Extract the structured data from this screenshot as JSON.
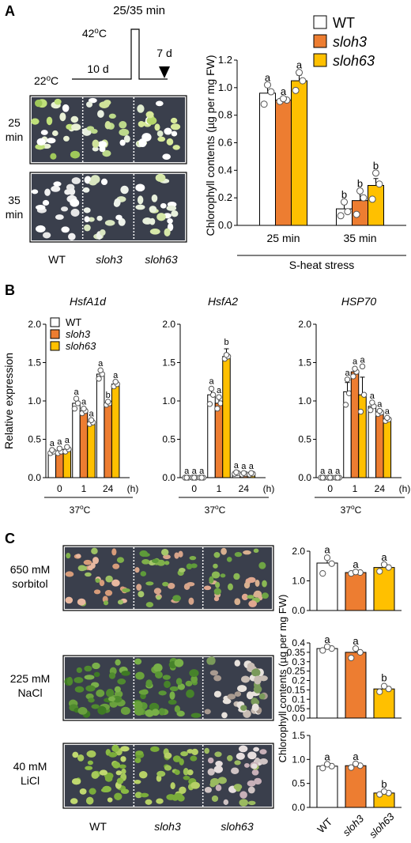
{
  "colors": {
    "WT": "#ffffff",
    "sloh3": "#ed7d31",
    "sloh63": "#ffc000",
    "axis": "#000000",
    "photo_bg": "#3a3f4c"
  },
  "panels": {
    "A": {
      "label": "A",
      "treatment": {
        "duration": "25/35 min",
        "high_temp": "42",
        "high_temp_unit": "oC",
        "base_temp": "22",
        "base_temp_unit": "oC",
        "growth": "10 d",
        "recovery": "7 d"
      },
      "photo_rows": [
        "25\nmin",
        "35\nmin"
      ],
      "photo_row_lines": [
        [
          "25",
          "min"
        ],
        [
          "35",
          "min"
        ]
      ],
      "genotypes": [
        "WT",
        "sloh3",
        "sloh63"
      ]
    },
    "B": {
      "label": "B"
    },
    "C": {
      "label": "C",
      "treatments": [
        [
          "650 mM",
          "sorbitol"
        ],
        [
          "225 mM",
          "NaCl"
        ],
        [
          "40 mM",
          "LiCl"
        ]
      ],
      "genotypes": [
        "WT",
        "sloh3",
        "sloh63"
      ]
    }
  },
  "chart_data": [
    {
      "id": "A-chlorophyll",
      "type": "bar",
      "ylabel": "Chlorophyll contents (µg per mg  FW)",
      "xlabel": "S-heat stress",
      "categories": [
        "25 min",
        "35 min"
      ],
      "ylim": [
        0,
        1.2
      ],
      "yticks": [
        "0.0",
        "0.2",
        "0.4",
        "0.6",
        "0.8",
        "1.0",
        "1.2"
      ],
      "legend": {
        "placement": "top-right",
        "entries": [
          "WT",
          "sloh3",
          "sloh63"
        ]
      },
      "series": [
        {
          "name": "WT",
          "values": [
            0.96,
            0.12
          ],
          "err": [
            0.05,
            0.04
          ],
          "points": [
            [
              0.88,
              0.97,
              1.02
            ],
            [
              0.07,
              0.1,
              0.17
            ]
          ],
          "letters": [
            "a",
            "b"
          ]
        },
        {
          "name": "sloh3",
          "values": [
            0.91,
            0.18
          ],
          "err": [
            0.01,
            0.06
          ],
          "points": [
            [
              0.9,
              0.91,
              0.92
            ],
            [
              0.08,
              0.2,
              0.25
            ]
          ],
          "letters": [
            "a",
            "b"
          ]
        },
        {
          "name": "sloh63",
          "values": [
            1.05,
            0.29
          ],
          "err": [
            0.04,
            0.05
          ],
          "points": [
            [
              0.98,
              1.05,
              1.11
            ],
            [
              0.19,
              0.3,
              0.38
            ]
          ],
          "letters": [
            "a",
            "b"
          ]
        }
      ]
    },
    {
      "id": "B-HsfA1d",
      "type": "bar",
      "title": "HsfA1d",
      "ylabel": "Relative expression",
      "xlabel": "37oC",
      "categories": [
        "0",
        "1",
        "24"
      ],
      "x_unit": "(h)",
      "ylim": [
        0,
        2.0
      ],
      "yticks": [
        "0.0",
        "0.5",
        "1.0",
        "1.5",
        "2.0"
      ],
      "legend": {
        "placement": "top-left",
        "entries": [
          "WT",
          "sloh3",
          "sloh63"
        ]
      },
      "series": [
        {
          "name": "WT",
          "values": [
            0.34,
            0.97,
            1.35
          ],
          "err": [
            0.02,
            0.06,
            0.05
          ],
          "points": [
            [
              0.32,
              0.34,
              0.36
            ],
            [
              0.9,
              0.97,
              1.03
            ],
            [
              1.29,
              1.35,
              1.4
            ]
          ],
          "letters": [
            "a",
            "a",
            "a"
          ]
        },
        {
          "name": "sloh3",
          "values": [
            0.34,
            0.87,
            0.97
          ],
          "err": [
            0.02,
            0.03,
            0.02
          ],
          "points": [
            [
              0.32,
              0.34,
              0.38
            ],
            [
              0.84,
              0.87,
              0.9
            ],
            [
              0.95,
              0.97,
              0.99
            ]
          ],
          "letters": [
            "a",
            "a",
            "b"
          ]
        },
        {
          "name": "sloh63",
          "values": [
            0.37,
            0.72,
            1.22
          ],
          "err": [
            0.02,
            0.02,
            0.03
          ],
          "points": [
            [
              0.34,
              0.37,
              0.4
            ],
            [
              0.7,
              0.72,
              0.75
            ],
            [
              1.19,
              1.22,
              1.25
            ]
          ],
          "letters": [
            "a",
            "a",
            "a"
          ]
        }
      ]
    },
    {
      "id": "B-HsfA2",
      "type": "bar",
      "title": "HsfA2",
      "xlabel": "37oC",
      "categories": [
        "0",
        "1",
        "24"
      ],
      "x_unit": "(h)",
      "ylim": [
        0,
        2.0
      ],
      "yticks": [
        "0.0",
        "0.5",
        "1.0",
        "1.5",
        "2.0"
      ],
      "series": [
        {
          "name": "WT",
          "values": [
            0.0,
            1.08,
            0.06
          ],
          "err": [
            0.0,
            0.09,
            0.01
          ],
          "points": [
            [
              0.0,
              0.0,
              0.0
            ],
            [
              0.96,
              1.08,
              1.16
            ],
            [
              0.05,
              0.06,
              0.07
            ]
          ],
          "letters": [
            "a",
            "a",
            "a"
          ]
        },
        {
          "name": "sloh3",
          "values": [
            0.0,
            0.97,
            0.05
          ],
          "err": [
            0.0,
            0.07,
            0.01
          ],
          "points": [
            [
              0.0,
              0.0,
              0.0
            ],
            [
              0.9,
              0.97,
              1.05
            ],
            [
              0.04,
              0.05,
              0.06
            ]
          ],
          "letters": [
            "a",
            "a",
            "a"
          ]
        },
        {
          "name": "sloh63",
          "values": [
            0.0,
            1.58,
            0.05
          ],
          "err": [
            0.0,
            0.1,
            0.01
          ],
          "points": [
            [
              0.0,
              0.0,
              0.0
            ],
            [
              1.55,
              1.58,
              1.6
            ],
            [
              0.04,
              0.05,
              0.06
            ]
          ],
          "letters": [
            "a",
            "b",
            "a"
          ]
        }
      ]
    },
    {
      "id": "B-HSP70",
      "type": "bar",
      "title": "HSP70",
      "xlabel": "37oC",
      "categories": [
        "0",
        "1",
        "24"
      ],
      "x_unit": "(h)",
      "ylim": [
        0,
        2.0
      ],
      "yticks": [
        "0.0",
        "0.5",
        "1.0",
        "1.5",
        "2.0"
      ],
      "series": [
        {
          "name": "WT",
          "values": [
            0.0,
            1.12,
            0.93
          ],
          "err": [
            0.0,
            0.12,
            0.04
          ],
          "points": [
            [
              0.0,
              0.0,
              0.0
            ],
            [
              0.95,
              1.1,
              1.28
            ],
            [
              0.88,
              0.93,
              0.98
            ]
          ],
          "letters": [
            "a",
            "a",
            "a"
          ]
        },
        {
          "name": "sloh3",
          "values": [
            0.0,
            1.38,
            0.85
          ],
          "err": [
            0.0,
            0.05,
            0.02
          ],
          "points": [
            [
              0.0,
              0.0,
              0.0
            ],
            [
              1.32,
              1.38,
              1.42
            ],
            [
              0.83,
              0.85,
              0.87
            ]
          ],
          "letters": [
            "a",
            "a",
            "a"
          ]
        },
        {
          "name": "sloh63",
          "values": [
            0.0,
            1.08,
            0.76
          ],
          "err": [
            0.0,
            0.23,
            0.02
          ],
          "points": [
            [
              0.0,
              0.0,
              0.0
            ],
            [
              0.86,
              1.08,
              1.45
            ],
            [
              0.74,
              0.76,
              0.78
            ]
          ],
          "letters": [
            "a",
            "a",
            "a"
          ]
        }
      ]
    },
    {
      "id": "C-sorbitol",
      "type": "bar",
      "categories": [
        "WT",
        "sloh3",
        "sloh63"
      ],
      "ylim": [
        0,
        2.0
      ],
      "yticks": [
        "0.0",
        "1.0",
        "2.0"
      ],
      "values": [
        1.6,
        1.28,
        1.45
      ],
      "err": [
        0.2,
        0.03,
        0.1
      ],
      "points": [
        [
          1.25,
          1.58,
          1.78
        ],
        [
          1.25,
          1.28,
          1.3
        ],
        [
          1.32,
          1.45,
          1.55
        ]
      ],
      "letters": [
        "a",
        "a",
        "a"
      ]
    },
    {
      "id": "C-NaCl",
      "type": "bar",
      "ylabel": "Chlorophyll contents (µg per mg  FW)",
      "categories": [
        "WT",
        "sloh3",
        "sloh63"
      ],
      "ylim": [
        0,
        0.4
      ],
      "yticks": [
        "0.0",
        "0.05",
        "0.1",
        "0.15",
        "0.2",
        "0.25",
        "0.3",
        "0.35",
        "0.4"
      ],
      "values": [
        0.37,
        0.35,
        0.155
      ],
      "err": [
        0.01,
        0.02,
        0.02
      ],
      "points": [
        [
          0.36,
          0.37,
          0.38
        ],
        [
          0.32,
          0.35,
          0.37
        ],
        [
          0.14,
          0.155,
          0.17
        ]
      ],
      "letters": [
        "a",
        "a",
        "b"
      ]
    },
    {
      "id": "C-LiCl",
      "type": "bar",
      "categories": [
        "WT",
        "sloh3",
        "sloh63"
      ],
      "ylim": [
        0,
        1.5
      ],
      "yticks": [
        "0.0",
        "0.5",
        "1.0",
        "1.5"
      ],
      "values": [
        0.86,
        0.87,
        0.3
      ],
      "err": [
        0.04,
        0.04,
        0.03
      ],
      "points": [
        [
          0.82,
          0.86,
          0.9
        ],
        [
          0.83,
          0.87,
          0.91
        ],
        [
          0.27,
          0.3,
          0.33
        ]
      ],
      "letters": [
        "a",
        "a",
        "b"
      ]
    }
  ]
}
